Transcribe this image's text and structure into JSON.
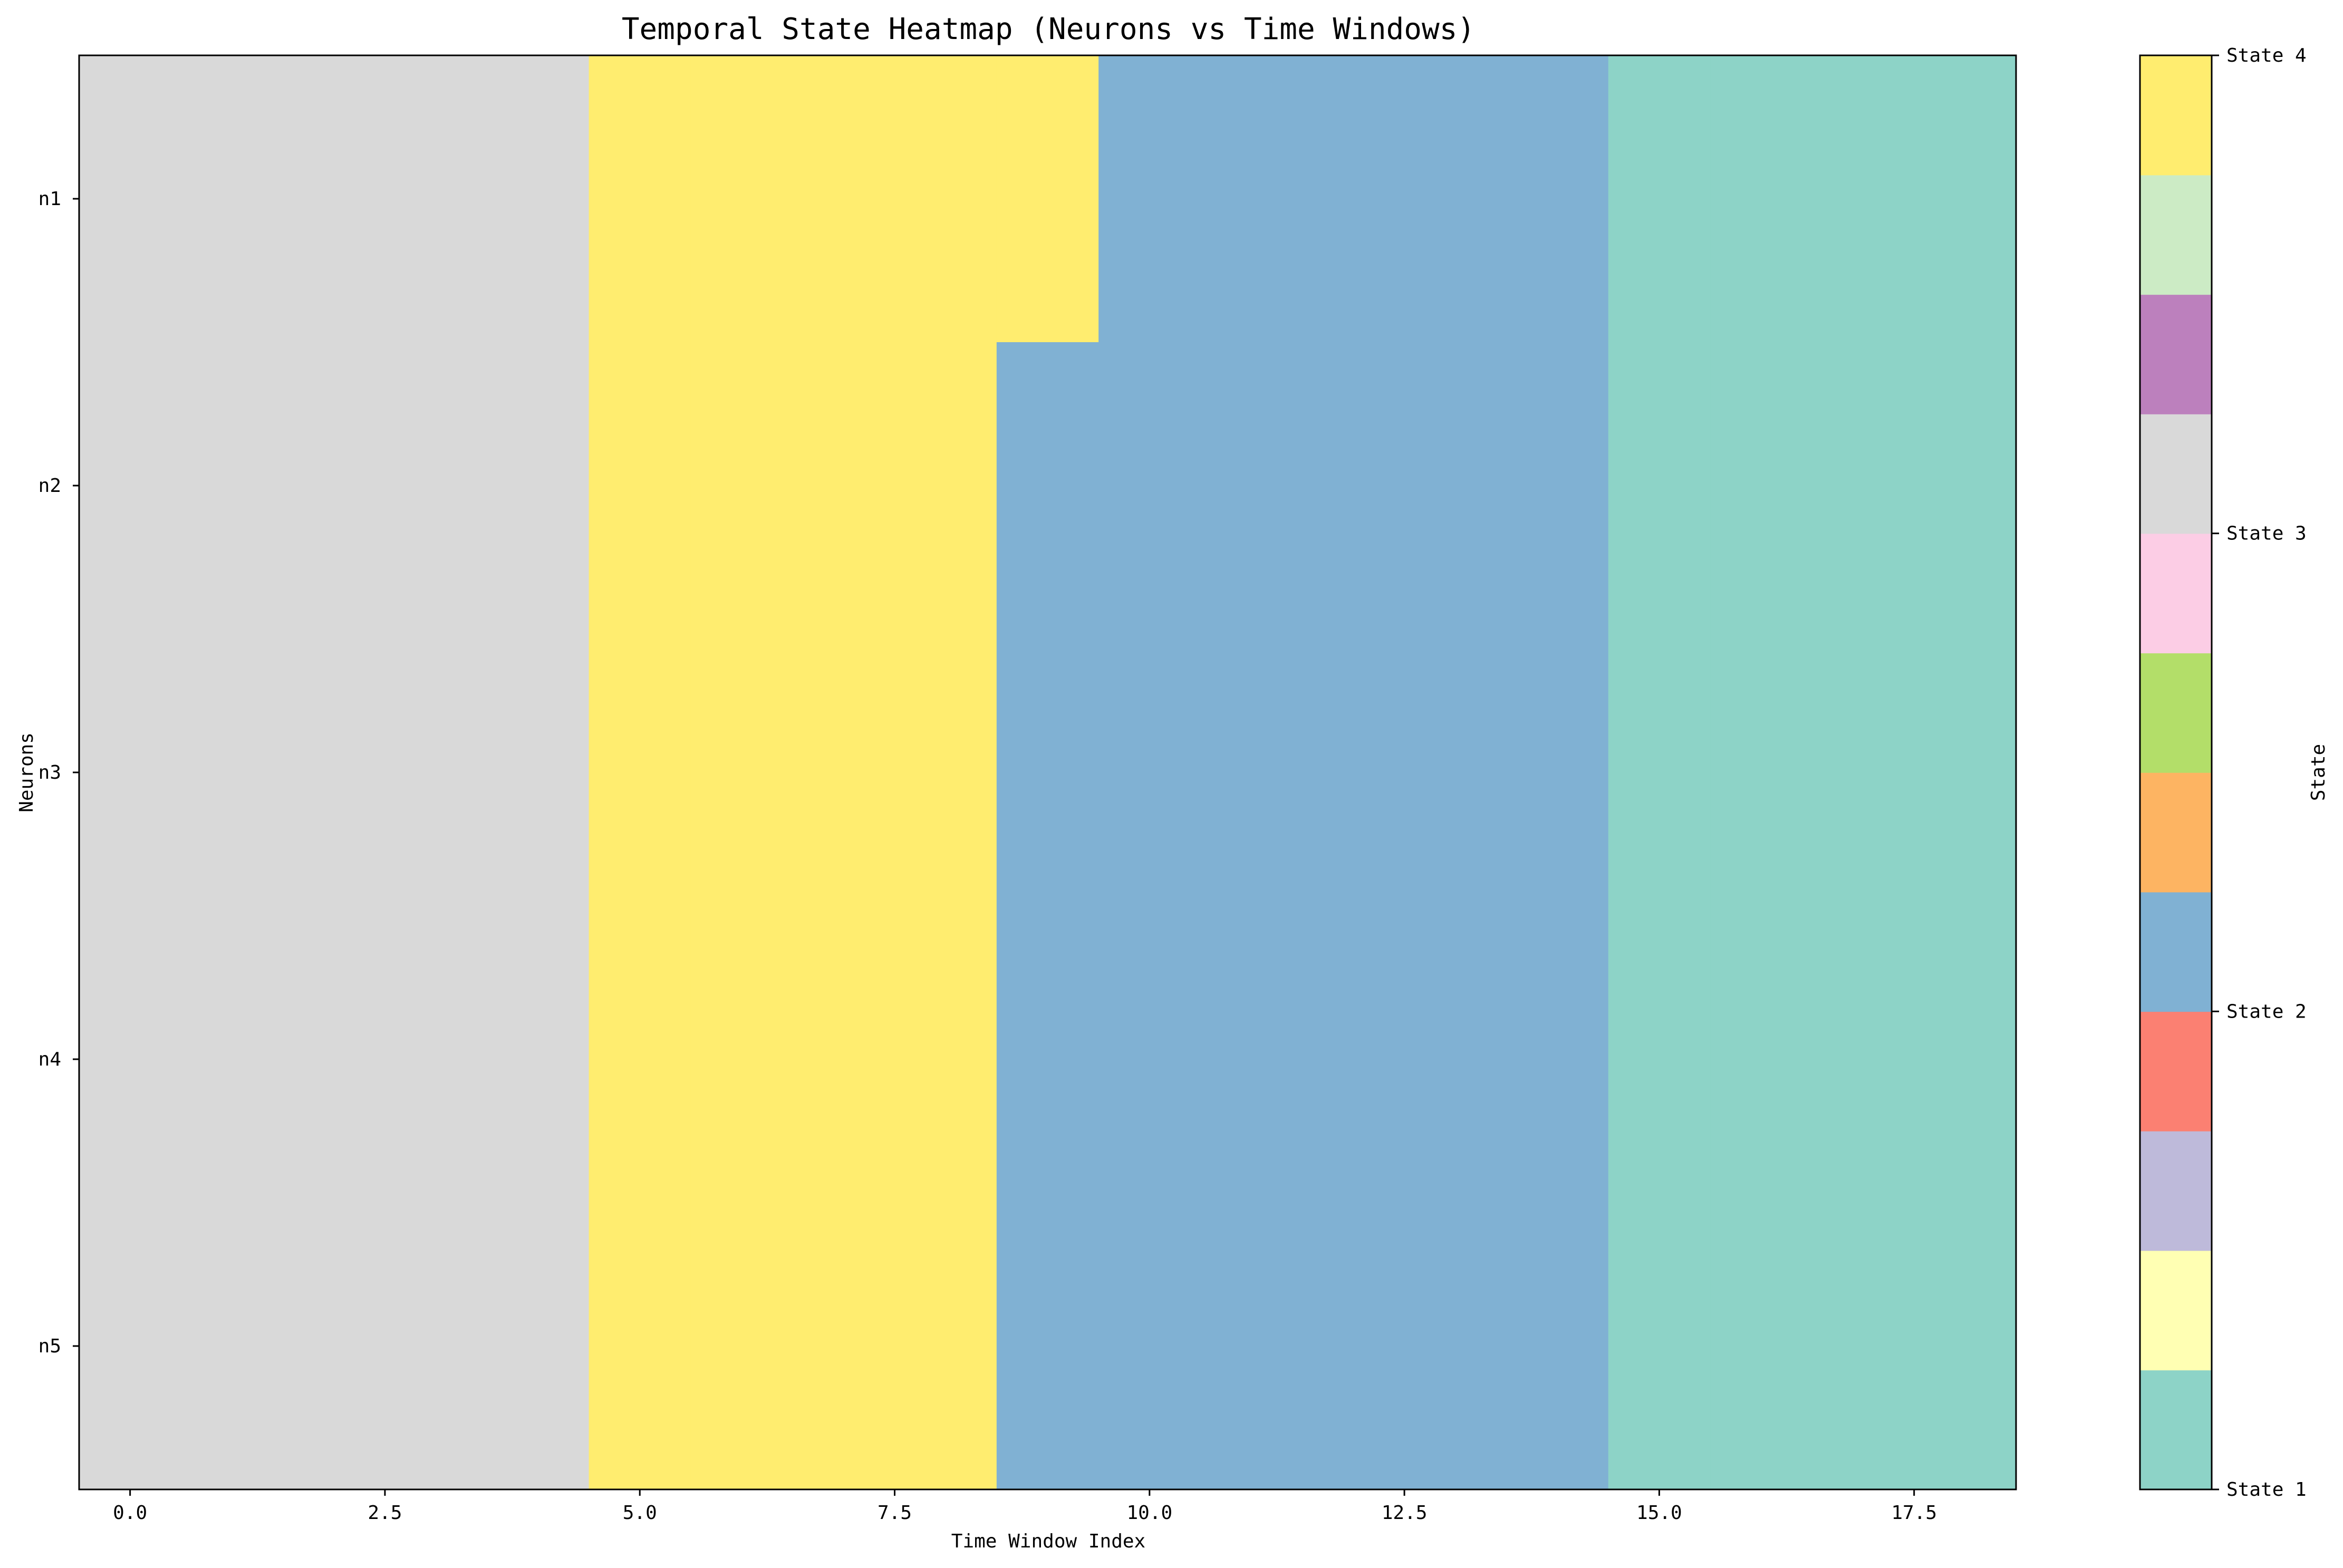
{
  "chart_data": {
    "type": "heatmap",
    "title": "Temporal State Heatmap (Neurons vs Time Windows)",
    "xlabel": "Time Window Index",
    "ylabel": "Neurons",
    "x": [
      0,
      1,
      2,
      3,
      4,
      5,
      6,
      7,
      8,
      9,
      10,
      11,
      12,
      13,
      14,
      15,
      16,
      17,
      18
    ],
    "xlim": [
      -0.5,
      18.5
    ],
    "x_ticks": [
      "0.0",
      "2.5",
      "5.0",
      "7.5",
      "10.0",
      "12.5",
      "15.0",
      "17.5"
    ],
    "x_tick_values": [
      0,
      2.5,
      5,
      7.5,
      10,
      12.5,
      15,
      17.5
    ],
    "y_categories": [
      "n1",
      "n2",
      "n3",
      "n4",
      "n5"
    ],
    "values": [
      [
        3,
        3,
        3,
        3,
        3,
        4,
        4,
        4,
        4,
        4,
        2,
        2,
        2,
        2,
        2,
        1,
        1,
        1,
        1
      ],
      [
        3,
        3,
        3,
        3,
        3,
        4,
        4,
        4,
        4,
        2,
        2,
        2,
        2,
        2,
        2,
        1,
        1,
        1,
        1
      ],
      [
        3,
        3,
        3,
        3,
        3,
        4,
        4,
        4,
        4,
        2,
        2,
        2,
        2,
        2,
        2,
        1,
        1,
        1,
        1
      ],
      [
        3,
        3,
        3,
        3,
        3,
        4,
        4,
        4,
        4,
        2,
        2,
        2,
        2,
        2,
        2,
        1,
        1,
        1,
        1
      ],
      [
        3,
        3,
        3,
        3,
        3,
        4,
        4,
        4,
        4,
        2,
        2,
        2,
        2,
        2,
        2,
        1,
        1,
        1,
        1
      ]
    ],
    "colorbar": {
      "label": "State",
      "range": [
        1,
        4
      ],
      "colormap": "Set3",
      "segment_colors": [
        "#8dd3c7",
        "#ffffb3",
        "#bebada",
        "#fb8072",
        "#80b1d3",
        "#fdb462",
        "#b3de69",
        "#fccde5",
        "#d9d9d9",
        "#bc80bd",
        "#ccebc5",
        "#ffed6f"
      ],
      "ticks": [
        {
          "value": 1,
          "label": "State 1"
        },
        {
          "value": 2,
          "label": "State 2"
        },
        {
          "value": 3,
          "label": "State 3"
        },
        {
          "value": 4,
          "label": "State 4"
        }
      ]
    },
    "grid": false
  }
}
